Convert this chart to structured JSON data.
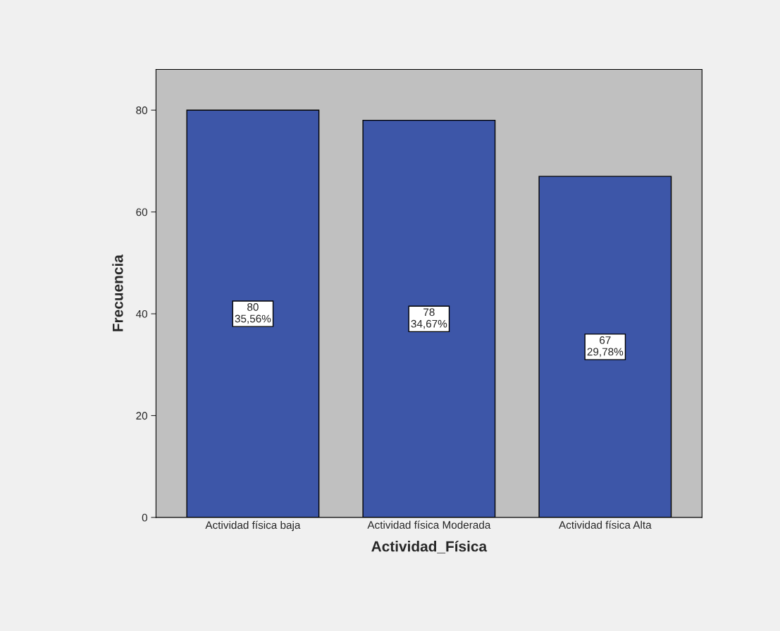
{
  "chart_data": {
    "type": "bar",
    "xlabel": "Actividad_Física",
    "ylabel": "Frecuencia",
    "categories": [
      "Actividad física baja",
      "Actividad física Moderada",
      "Actividad física Alta"
    ],
    "values": [
      80,
      78,
      67
    ],
    "color": "#3d56a8",
    "value_labels": [
      "80\n35,56%",
      "78\n34,67%",
      "67\n29,78%"
    ],
    "ylim": [
      0,
      88
    ],
    "yticks": [
      0,
      20,
      40,
      60,
      80
    ]
  }
}
